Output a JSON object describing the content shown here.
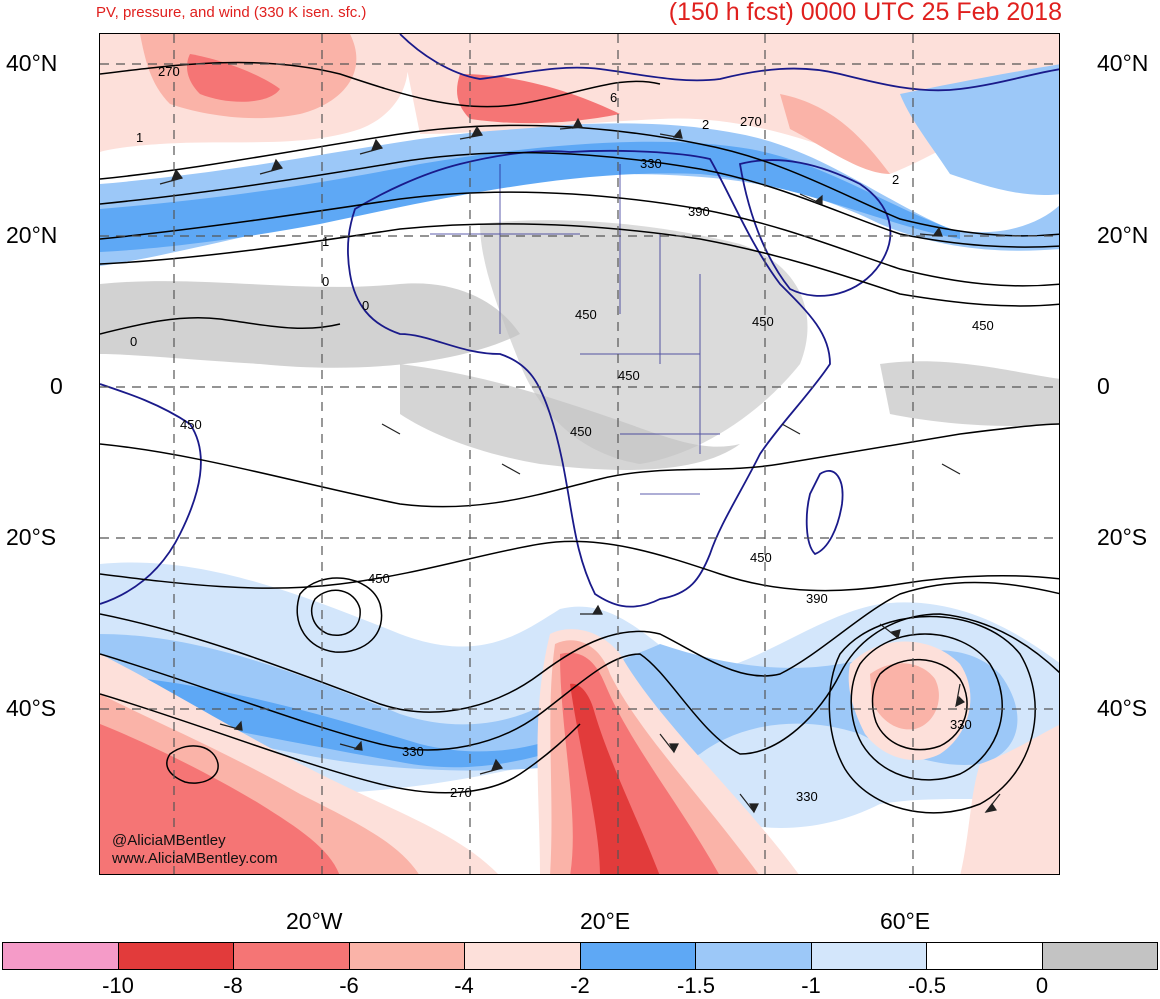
{
  "header": {
    "subtitle": "PV, pressure, and wind (330 K isen. sfc.)",
    "title": "(150 h fcst) 0000 UTC 25 Feb 2018"
  },
  "lat_labels": [
    "40°N",
    "20°N",
    "0",
    "20°S",
    "40°S"
  ],
  "lon_labels": [
    "20°W",
    "20°E",
    "60°E"
  ],
  "contour_labels": [
    "270",
    "1",
    "6",
    "2",
    "270",
    "330",
    "390",
    "1",
    "0",
    "0",
    "0",
    "450",
    "450",
    "450",
    "450",
    "450",
    "450",
    "450",
    "390",
    "450",
    "330",
    "330",
    "270",
    "330",
    "2"
  ],
  "credit": {
    "handle": "@AliciaMBentley",
    "site": "www.AliciaMBentley.com"
  },
  "colorbar": {
    "colors": [
      "#f59bc8",
      "#e23b3b",
      "#f57575",
      "#fab3a8",
      "#fde0da",
      "#5ea8f5",
      "#9cc8f8",
      "#d3e6fb",
      "#ffffff",
      "#c3c3c3"
    ],
    "labels": [
      "-10",
      "-8",
      "-6",
      "-4",
      "-2",
      "-1.5",
      "-1",
      "-0.5",
      "0"
    ]
  }
}
